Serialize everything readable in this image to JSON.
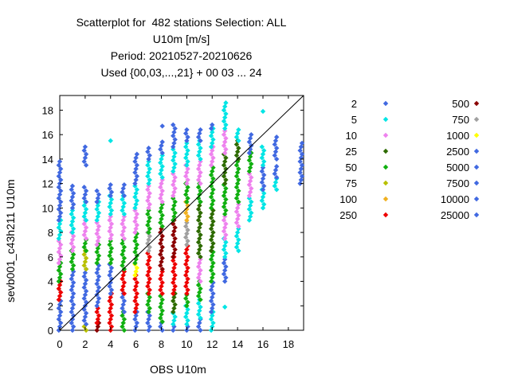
{
  "chart_data": {
    "type": "scatter",
    "title_lines": [
      "Scatterplot for  482 stations Selection: ALL",
      "U10m [m/s]",
      "Period: 20210527-20210626",
      "Used {00,03,...,21} + 00 03 ... 24"
    ],
    "xlabel": "OBS U10m",
    "ylabel": "sevb001_c43h211 U10m",
    "xlim": [
      0,
      19.2
    ],
    "ylim": [
      0,
      19.2
    ],
    "x_ticks": [
      0,
      2,
      4,
      6,
      8,
      10,
      12,
      14,
      16,
      18
    ],
    "y_ticks": [
      0,
      2,
      4,
      6,
      8,
      10,
      12,
      14,
      16,
      18
    ],
    "diagonal": true,
    "legend_placement": "right",
    "legend": [
      {
        "label": "2",
        "color": "#4169e1"
      },
      {
        "label": "5",
        "color": "#00e5e5"
      },
      {
        "label": "10",
        "color": "#ee82ee"
      },
      {
        "label": "25",
        "color": "#2e6b00"
      },
      {
        "label": "50",
        "color": "#10b010"
      },
      {
        "label": "75",
        "color": "#b8c000"
      },
      {
        "label": "100",
        "color": "#f0b020"
      },
      {
        "label": "250",
        "color": "#ee0000"
      },
      {
        "label": "500",
        "color": "#8b0000"
      },
      {
        "label": "750",
        "color": "#a0a0a0"
      },
      {
        "label": "1000",
        "color": "#ffff00"
      },
      {
        "label": "2500",
        "color": "#4169e1"
      },
      {
        "label": "5000",
        "color": "#4169e1"
      },
      {
        "label": "7500",
        "color": "#4169e1"
      },
      {
        "label": "10000",
        "color": "#4169e1"
      },
      {
        "label": "25000",
        "color": "#4169e1"
      }
    ],
    "columns": [
      {
        "x": 0,
        "segments": [
          [
            0,
            2.5,
            "#4169e1"
          ],
          [
            2.5,
            4,
            "#ee0000"
          ],
          [
            4,
            5.5,
            "#10b010"
          ],
          [
            5.5,
            7.5,
            "#ee82ee"
          ],
          [
            7.5,
            9,
            "#00e5e5"
          ],
          [
            9,
            13.8,
            "#4169e1"
          ]
        ]
      },
      {
        "x": 1,
        "segments": [
          [
            0,
            5,
            "#4169e1"
          ],
          [
            5,
            6.5,
            "#10b010"
          ],
          [
            6.5,
            8,
            "#ee82ee"
          ],
          [
            8,
            10,
            "#00e5e5"
          ],
          [
            10,
            12,
            "#4169e1"
          ]
        ]
      },
      {
        "x": 2,
        "segments": [
          [
            0,
            0.5,
            "#b8c000"
          ],
          [
            0.5,
            5,
            "#4169e1"
          ],
          [
            5,
            6.5,
            "#b8c000"
          ],
          [
            6.5,
            7.5,
            "#10b010"
          ],
          [
            7.5,
            9,
            "#ee82ee"
          ],
          [
            9,
            10.5,
            "#00e5e5"
          ],
          [
            10.5,
            11.7,
            "#4169e1"
          ],
          [
            13.5,
            15.1,
            "#4169e1"
          ]
        ]
      },
      {
        "x": 3,
        "segments": [
          [
            0,
            0.6,
            "#8b0000"
          ],
          [
            0.6,
            2,
            "#ee0000"
          ],
          [
            2,
            5.5,
            "#4169e1"
          ],
          [
            5.5,
            7,
            "#10b010"
          ],
          [
            7,
            9,
            "#ee82ee"
          ],
          [
            9,
            10.5,
            "#00e5e5"
          ],
          [
            10.5,
            11.5,
            "#4169e1"
          ]
        ]
      },
      {
        "x": 4,
        "segments": [
          [
            0,
            3,
            "#ee0000"
          ],
          [
            3,
            5.5,
            "#4169e1"
          ],
          [
            5.5,
            7.5,
            "#10b010"
          ],
          [
            7.5,
            9.5,
            "#ee82ee"
          ],
          [
            9.5,
            11,
            "#00e5e5"
          ],
          [
            11,
            12,
            "#4169e1"
          ],
          [
            15.5,
            15.6,
            "#00e5e5"
          ]
        ]
      },
      {
        "x": 5,
        "segments": [
          [
            0,
            1.5,
            "#10b010"
          ],
          [
            1.5,
            3,
            "#4169e1"
          ],
          [
            3,
            5,
            "#ee0000"
          ],
          [
            5,
            7.5,
            "#10b010"
          ],
          [
            7.5,
            9.5,
            "#ee82ee"
          ],
          [
            9.5,
            11,
            "#00e5e5"
          ],
          [
            11,
            12,
            "#4169e1"
          ]
        ]
      },
      {
        "x": 6,
        "segments": [
          [
            0,
            1.5,
            "#4169e1"
          ],
          [
            1.5,
            4.5,
            "#ee0000"
          ],
          [
            4.5,
            5.5,
            "#ffff00"
          ],
          [
            5.5,
            8,
            "#10b010"
          ],
          [
            8,
            10,
            "#ee82ee"
          ],
          [
            10,
            12,
            "#00e5e5"
          ],
          [
            12,
            14.5,
            "#4169e1"
          ]
        ]
      },
      {
        "x": 7,
        "segments": [
          [
            0,
            1.5,
            "#4169e1"
          ],
          [
            1.5,
            3,
            "#10b010"
          ],
          [
            3,
            6.5,
            "#ee0000"
          ],
          [
            6.5,
            8,
            "#a0a0a0"
          ],
          [
            8,
            10,
            "#10b010"
          ],
          [
            10,
            12,
            "#ee82ee"
          ],
          [
            12,
            14,
            "#00e5e5"
          ],
          [
            14,
            15,
            "#4169e1"
          ]
        ]
      },
      {
        "x": 8,
        "segments": [
          [
            0,
            0.7,
            "#4169e1"
          ],
          [
            0.7,
            3,
            "#10b010"
          ],
          [
            3,
            5,
            "#ee0000"
          ],
          [
            5,
            8.5,
            "#8b0000"
          ],
          [
            8.5,
            10.5,
            "#10b010"
          ],
          [
            10.5,
            12.5,
            "#ee82ee"
          ],
          [
            12.5,
            14.5,
            "#00e5e5"
          ],
          [
            14.5,
            15.5,
            "#4169e1"
          ],
          [
            16.7,
            16.8,
            "#4169e1"
          ]
        ]
      },
      {
        "x": 9,
        "segments": [
          [
            0,
            0.5,
            "#4169e1"
          ],
          [
            0.5,
            1.5,
            "#00e5e5"
          ],
          [
            1.5,
            3,
            "#2e6b00"
          ],
          [
            3,
            6,
            "#ee0000"
          ],
          [
            6,
            9,
            "#8b0000"
          ],
          [
            9,
            11,
            "#10b010"
          ],
          [
            11,
            13,
            "#ee82ee"
          ],
          [
            13,
            15,
            "#00e5e5"
          ],
          [
            15,
            17,
            "#4169e1"
          ]
        ]
      },
      {
        "x": 10,
        "segments": [
          [
            0,
            0.5,
            "#4169e1"
          ],
          [
            0.5,
            2,
            "#00e5e5"
          ],
          [
            2,
            3,
            "#10b010"
          ],
          [
            3,
            7,
            "#ee0000"
          ],
          [
            7,
            9,
            "#a0a0a0"
          ],
          [
            9,
            10.5,
            "#f0b020"
          ],
          [
            10.5,
            12,
            "#10b010"
          ],
          [
            12,
            13.5,
            "#ee82ee"
          ],
          [
            13.5,
            15.5,
            "#00e5e5"
          ],
          [
            15.5,
            16.5,
            "#4169e1"
          ]
        ]
      },
      {
        "x": 11,
        "segments": [
          [
            0,
            1,
            "#4169e1"
          ],
          [
            1,
            2.5,
            "#00e5e5"
          ],
          [
            2.5,
            4,
            "#10b010"
          ],
          [
            4,
            6,
            "#ee82ee"
          ],
          [
            6,
            10.5,
            "#2e6b00"
          ],
          [
            10.5,
            12,
            "#10b010"
          ],
          [
            12,
            14,
            "#ee82ee"
          ],
          [
            14,
            15.5,
            "#00e5e5"
          ],
          [
            15.5,
            16.5,
            "#4169e1"
          ]
        ]
      },
      {
        "x": 12,
        "segments": [
          [
            0,
            1.5,
            "#00e5e5"
          ],
          [
            1.5,
            4,
            "#4169e1"
          ],
          [
            4,
            6.5,
            "#10b010"
          ],
          [
            6.5,
            10,
            "#2e6b00"
          ],
          [
            10,
            13.5,
            "#10b010"
          ],
          [
            13.5,
            15,
            "#ee82ee"
          ],
          [
            15,
            16.5,
            "#00e5e5"
          ],
          [
            16.5,
            17,
            "#4169e1"
          ]
        ]
      },
      {
        "x": 13,
        "segments": [
          [
            1.9,
            2,
            "#00e5e5"
          ],
          [
            4,
            6,
            "#4169e1"
          ],
          [
            6,
            7.5,
            "#00e5e5"
          ],
          [
            7.5,
            9.5,
            "#ee82ee"
          ],
          [
            9.5,
            12,
            "#10b010"
          ],
          [
            12,
            14.5,
            "#2e6b00"
          ],
          [
            14.5,
            16.5,
            "#ee82ee"
          ],
          [
            16.5,
            18.8,
            "#00e5e5"
          ]
        ]
      },
      {
        "x": 14,
        "segments": [
          [
            6.5,
            8.5,
            "#00e5e5"
          ],
          [
            8.5,
            10.5,
            "#ee82ee"
          ],
          [
            10.5,
            14,
            "#10b010"
          ],
          [
            14,
            15.5,
            "#2e6b00"
          ],
          [
            15.5,
            16.5,
            "#00e5e5"
          ]
        ]
      },
      {
        "x": 15,
        "segments": [
          [
            9,
            11,
            "#00e5e5"
          ],
          [
            11,
            13,
            "#ee82ee"
          ],
          [
            13,
            14.5,
            "#10b010"
          ],
          [
            14.5,
            16,
            "#4169e1"
          ]
        ]
      },
      {
        "x": 16,
        "segments": [
          [
            10,
            11.5,
            "#00e5e5"
          ],
          [
            11.5,
            13.5,
            "#4169e1"
          ],
          [
            13.5,
            15,
            "#00e5e5"
          ],
          [
            17.9,
            18.1,
            "#00e5e5"
          ]
        ]
      },
      {
        "x": 17,
        "segments": [
          [
            11.5,
            12.5,
            "#00e5e5"
          ],
          [
            12.5,
            13.5,
            "#4169e1"
          ],
          [
            14,
            16,
            "#4169e1"
          ]
        ]
      },
      {
        "x": 19,
        "segments": [
          [
            12,
            15.5,
            "#4169e1"
          ]
        ]
      }
    ]
  }
}
